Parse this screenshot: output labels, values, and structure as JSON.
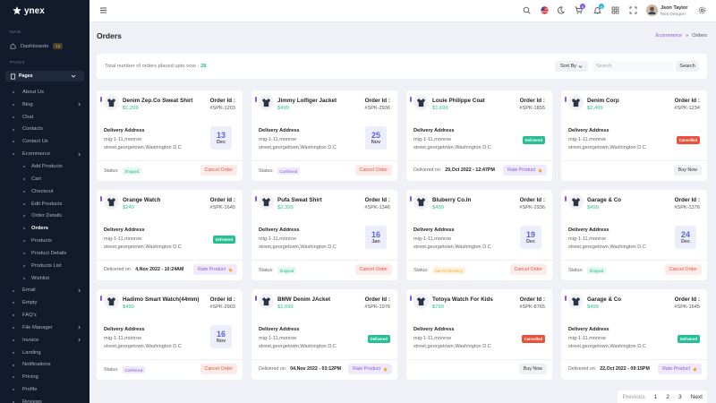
{
  "sidebar": {
    "logo": "ynex",
    "main_label": "MAIN",
    "dashboards": "Dashboards",
    "dashboards_badge": 12,
    "pages_label": "PAGES",
    "pages": "Pages",
    "items": [
      {
        "label": "About Us"
      },
      {
        "label": "Blog",
        "submenu": true
      },
      {
        "label": "Chat"
      },
      {
        "label": "Contacts"
      },
      {
        "label": "Contact Us"
      },
      {
        "label": "Ecommerce",
        "submenu": true,
        "children": [
          {
            "label": "Add Products"
          },
          {
            "label": "Cart"
          },
          {
            "label": "Checkout"
          },
          {
            "label": "Edit Products"
          },
          {
            "label": "Order Details"
          },
          {
            "label": "Orders",
            "active": true
          },
          {
            "label": "Products"
          },
          {
            "label": "Product Details"
          },
          {
            "label": "Products List"
          },
          {
            "label": "Wishlist"
          }
        ]
      },
      {
        "label": "Email",
        "submenu": true
      },
      {
        "label": "Empty"
      },
      {
        "label": "FAQ's"
      },
      {
        "label": "File Manager",
        "submenu": true
      },
      {
        "label": "Invoice",
        "submenu": true
      },
      {
        "label": "Landing"
      },
      {
        "label": "Notifications"
      },
      {
        "label": "Pricing"
      },
      {
        "label": "Profile"
      },
      {
        "label": "Reviews"
      }
    ]
  },
  "header": {
    "cart_badge": 5,
    "notification_badge": 5,
    "user_name": "Json Taylor",
    "user_role": "Web Designer"
  },
  "page_title": "Orders",
  "breadcrumb": {
    "parent": "Ecommerce",
    "separator": "»",
    "current": "Orders"
  },
  "summary": {
    "text": "Total number of orders placed upto now :",
    "count": 28,
    "sort_by": "Sort By",
    "search_placeholder": "Search",
    "search_button": "Search"
  },
  "labels": {
    "order_id": "Order Id :",
    "delivery_address": "Delivery Address",
    "status": "Status:",
    "delivered_on": "Delivered on:"
  },
  "cards": [
    {
      "name": "Denim Zep.Co Sweat Shirt",
      "price": "$1,299",
      "order_id": "#SPK-1203",
      "address": "mig-1-11,monroe street,georgetown,Washington D.C",
      "date": {
        "day": 13,
        "month": "Dec"
      },
      "status": "Shipped",
      "status_style": "success",
      "action": "Cancel Order",
      "action_style": "danger"
    },
    {
      "name": "Jimmy Lolfiger Jacket",
      "price": "$499",
      "order_id": "#SPK-2936",
      "address": "mig-1-11,monroe street,georgetown,Washington D.C",
      "date": {
        "day": 25,
        "month": "Nov"
      },
      "status": "Confirmed",
      "status_style": "primary",
      "action": "Cancel Order",
      "action_style": "danger"
    },
    {
      "name": "Louie Philippe Coat",
      "price": "$1,699",
      "order_id": "#SPK-1855",
      "address": "mig-1-11,monroe street,georgetown,Washington D.C",
      "badge": "Delivered",
      "badge_style": "success",
      "delivered_on": "29,Oct 2022 - 12:47PM",
      "action": "Rate Product",
      "action_style": "primary",
      "action_star": true
    },
    {
      "name": "Denim Corp",
      "price": "$2,499",
      "order_id": "#SPK-1234",
      "address": "mig-1-11,monroe street,georgetown,Washington D.C",
      "badge": "Cancelled",
      "badge_style": "danger",
      "action": "Buy Now",
      "action_style": "light"
    },
    {
      "name": "Orange Watch",
      "price": "$249",
      "order_id": "#SPK-1645",
      "address": "mig-1-11,monroe street,georgetown,Washington D.C",
      "badge": "Delivered",
      "badge_style": "success",
      "delivered_on": "4,Nov 2022 - 10:24AM",
      "action": "Rate Product",
      "action_style": "primary",
      "action_star": true
    },
    {
      "name": "Pufa Sweat Shirt",
      "price": "$2,399",
      "order_id": "#SPK-1346",
      "address": "mig-1-11,monroe street,georgetown,Washington D.C",
      "date": {
        "day": 16,
        "month": "Jan"
      },
      "status": "Shipped",
      "status_style": "success",
      "action": "Cancel Order",
      "action_style": "danger"
    },
    {
      "name": "Bluberry Co.In",
      "price": "$499",
      "order_id": "#SPK-2936",
      "address": "mig-1-11,monroe street,georgetown,Washington D.C",
      "date": {
        "day": 19,
        "month": "Dec"
      },
      "status": "Out For Delivery",
      "status_style": "warning",
      "action": "Cancel Order",
      "action_style": "danger"
    },
    {
      "name": "Garage & Co",
      "price": "$499",
      "order_id": "#SPK-1376",
      "address": "mig-1-11,monroe street,georgetown,Washington D.C",
      "date": {
        "day": 24,
        "month": "Dec"
      },
      "status": "Shipped",
      "status_style": "success",
      "action": "Cancel Order",
      "action_style": "danger"
    },
    {
      "name": "Hadimo Smart Watch(44mm)",
      "price": "$499",
      "order_id": "#SPK-2903",
      "address": "mig-1-11,monroe street,georgetown,Washington D.C",
      "date": {
        "day": 16,
        "month": "Nov"
      },
      "status": "Confirmed",
      "status_style": "primary",
      "action": "Cancel Order",
      "action_style": "danger"
    },
    {
      "name": "BMW Denim JAcket",
      "price": "$1,699",
      "order_id": "#SPK-1976",
      "address": "mig-1-11,monroe street,georgetown,Washington D.C",
      "badge": "Delivered",
      "badge_style": "success",
      "delivered_on": "04,Nov 2022 - 03:12PM",
      "action": "Rate Product",
      "action_style": "primary",
      "action_star": true
    },
    {
      "name": "Totoya Watch For Kids",
      "price": "$799",
      "order_id": "#SPK-8765",
      "address": "mig-1-11,monroe street,georgetown,Washington D.C",
      "badge": "Cancelled",
      "badge_style": "danger",
      "action": "Buy Now",
      "action_style": "light"
    },
    {
      "name": "Garage & Co",
      "price": "$499",
      "order_id": "#SPK-1645",
      "address": "mig-1-11,monroe street,georgetown,Washington D.C",
      "badge": "Delivered",
      "badge_style": "success",
      "delivered_on": "22,Oct 2022 - 09:15PM",
      "action": "Rate Product",
      "action_style": "primary",
      "action_star": true
    }
  ],
  "pagination": {
    "previous": "Previous",
    "pages": [
      1,
      2,
      3
    ],
    "next": "Next"
  }
}
